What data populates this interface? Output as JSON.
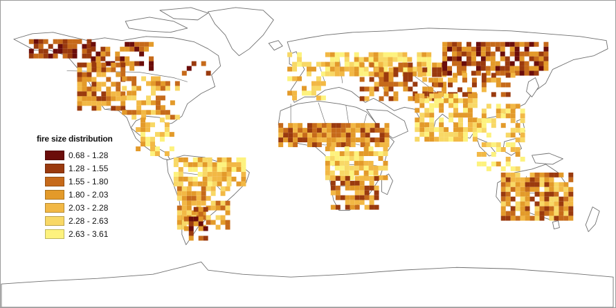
{
  "legend": {
    "title": "fire size distribution",
    "classes": [
      {
        "label": "0.68 - 1.28",
        "color": "#6b0d0a"
      },
      {
        "label": "1.28 - 1.55",
        "color": "#9a3a0e"
      },
      {
        "label": "1.55 - 1.80",
        "color": "#c66a1a"
      },
      {
        "label": "1.80 - 2.03",
        "color": "#e39a2a"
      },
      {
        "label": "2.03 - 2.28",
        "color": "#f2b845"
      },
      {
        "label": "2.28 - 2.63",
        "color": "#f8d866"
      },
      {
        "label": "2.63 - 3.61",
        "color": "#fdf27e"
      }
    ]
  },
  "map": {
    "projection": "plate-carree",
    "lon_range": [
      -180,
      180
    ],
    "lat_range": [
      -90,
      90
    ],
    "coastline_color": "#6e6e6e",
    "background_color": "#ffffff"
  }
}
